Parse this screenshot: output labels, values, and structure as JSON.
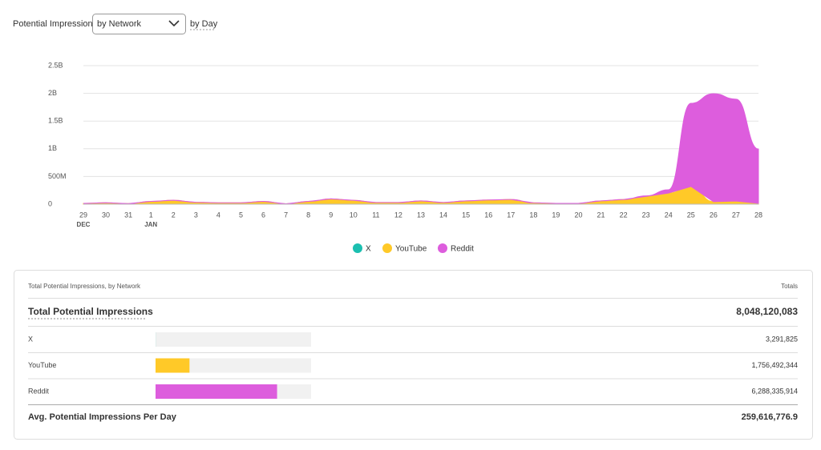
{
  "controls": {
    "label": "Potential Impressions",
    "select": "by Network",
    "period": "by Day"
  },
  "chart_data": {
    "type": "stacked-area",
    "categories": [
      "29",
      "30",
      "31",
      "1",
      "2",
      "3",
      "4",
      "5",
      "6",
      "7",
      "8",
      "9",
      "10",
      "11",
      "12",
      "13",
      "14",
      "15",
      "16",
      "17",
      "18",
      "19",
      "20",
      "21",
      "22",
      "23",
      "24",
      "25",
      "26",
      "27",
      "28"
    ],
    "month_labels": [
      "DEC",
      null,
      null,
      "JAN",
      null,
      null,
      null,
      null,
      null,
      null,
      null,
      null,
      null,
      null,
      null,
      null,
      null,
      null,
      null,
      null,
      null,
      null,
      null,
      null,
      null,
      null,
      null,
      null,
      null,
      null,
      null
    ],
    "ylim": [
      0,
      2500000000
    ],
    "yticks": [
      0,
      {
        "value": 500000000,
        "label": "500M"
      },
      {
        "value": 1000000000,
        "label": "1B"
      },
      {
        "value": 1500000000,
        "label": "1.5B"
      },
      {
        "value": 2000000000,
        "label": "2B"
      },
      {
        "value": 2500000000,
        "label": "2.5B"
      }
    ],
    "grid": true,
    "series": [
      {
        "name": "X",
        "color": "#1bbfb0",
        "values": [
          110000,
          110000,
          100000,
          100000,
          110000,
          110000,
          100000,
          100000,
          110000,
          100000,
          100000,
          110000,
          110000,
          100000,
          100000,
          110000,
          110000,
          100000,
          100000,
          110000,
          110000,
          100000,
          100000,
          110000,
          110000,
          100000,
          100000,
          110000,
          110000,
          100000,
          100000
        ]
      },
      {
        "name": "YouTube",
        "color": "#ffc928",
        "values": [
          15000000,
          25000000,
          10000000,
          50000000,
          70000000,
          35000000,
          25000000,
          25000000,
          50000000,
          8000000,
          50000000,
          95000000,
          70000000,
          30000000,
          30000000,
          60000000,
          30000000,
          60000000,
          75000000,
          85000000,
          25000000,
          15000000,
          15000000,
          60000000,
          85000000,
          140000000,
          200000000,
          320000000,
          45000000,
          55000000,
          15000000
        ]
      },
      {
        "name": "Reddit",
        "color": "#dd5ddd",
        "values": [
          0,
          0,
          0,
          0,
          0,
          0,
          0,
          0,
          0,
          0,
          0,
          0,
          0,
          0,
          0,
          0,
          0,
          0,
          0,
          0,
          0,
          0,
          0,
          0,
          0,
          10000000,
          60000000,
          1500000000,
          1950000000,
          1840000000,
          980000000
        ]
      }
    ]
  },
  "table": {
    "title": "Total Potential Impressions, by Network",
    "totals_header": "Totals",
    "total": {
      "label": "Total Potential Impressions",
      "value": 8048120083,
      "value_label": "8,048,120,083"
    },
    "rows": [
      {
        "name": "X",
        "value": 3291825,
        "value_label": "3,291,825",
        "color": "#1bbfb0"
      },
      {
        "name": "YouTube",
        "value": 1756492344,
        "value_label": "1,756,492,344",
        "color": "#ffc928"
      },
      {
        "name": "Reddit",
        "value": 6288335914,
        "value_label": "6,288,335,914",
        "color": "#dd5ddd"
      }
    ],
    "average": {
      "label": "Avg. Potential Impressions Per Day",
      "value": 259616776.9,
      "value_label": "259,616,776.9"
    }
  }
}
